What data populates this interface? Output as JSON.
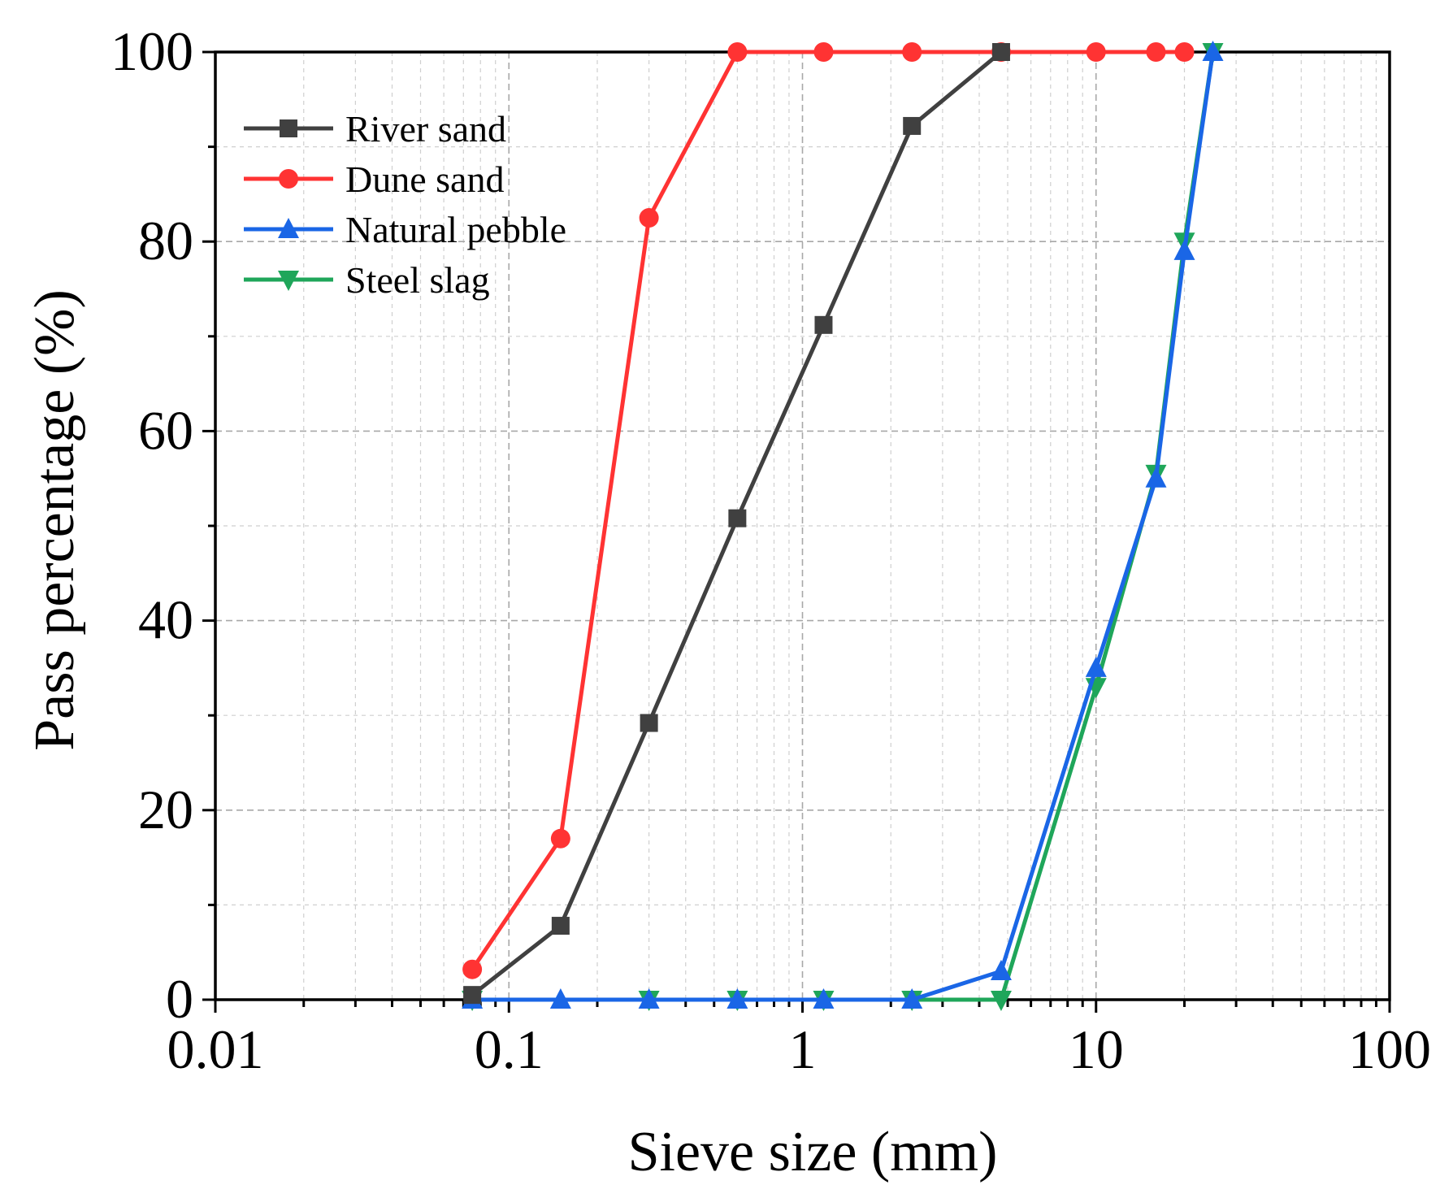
{
  "chart_data": {
    "type": "line",
    "title": "",
    "xlabel": "Sieve size (mm)",
    "ylabel": "Pass percentage (%)",
    "xscale": "log",
    "xlim": [
      0.01,
      100
    ],
    "ylim": [
      0,
      100
    ],
    "xticks": [
      0.01,
      0.1,
      1,
      10,
      100
    ],
    "xtick_labels": [
      "0.01",
      "0.1",
      "1",
      "10",
      "100"
    ],
    "yticks": [
      0,
      20,
      40,
      60,
      80,
      100
    ],
    "ytick_labels": [
      "0",
      "20",
      "40",
      "60",
      "80",
      "100"
    ],
    "grid": true,
    "legend_position": "top-left",
    "series": [
      {
        "name": "River sand",
        "color": "#404040",
        "marker": "square",
        "x": [
          0.075,
          0.15,
          0.3,
          0.6,
          1.18,
          2.36,
          4.75
        ],
        "y": [
          0.5,
          7.8,
          29.2,
          50.8,
          71.2,
          92.2,
          100
        ]
      },
      {
        "name": "Dune sand",
        "color": "#ff3333",
        "marker": "circle",
        "x": [
          0.075,
          0.15,
          0.3,
          0.6,
          1.18,
          2.36,
          4.75,
          10,
          16,
          20
        ],
        "y": [
          3.2,
          17.0,
          82.5,
          100,
          100,
          100,
          100,
          100,
          100,
          100
        ]
      },
      {
        "name": "Natural pebble",
        "color": "#1a66e6",
        "marker": "triangle-up",
        "x": [
          0.075,
          0.15,
          0.3,
          0.6,
          1.18,
          2.36,
          4.75,
          10,
          16,
          20,
          25
        ],
        "y": [
          0,
          0,
          0,
          0,
          0,
          0,
          3.0,
          35.0,
          55.0,
          79.0,
          100
        ]
      },
      {
        "name": "Steel slag",
        "color": "#1fa65a",
        "marker": "triangle-down",
        "x": [
          0.075,
          0.3,
          0.6,
          1.18,
          2.36,
          4.75,
          10,
          16,
          20,
          25
        ],
        "y": [
          0,
          0,
          0,
          0,
          0,
          0,
          33.0,
          55.5,
          80.0,
          100
        ]
      }
    ]
  }
}
